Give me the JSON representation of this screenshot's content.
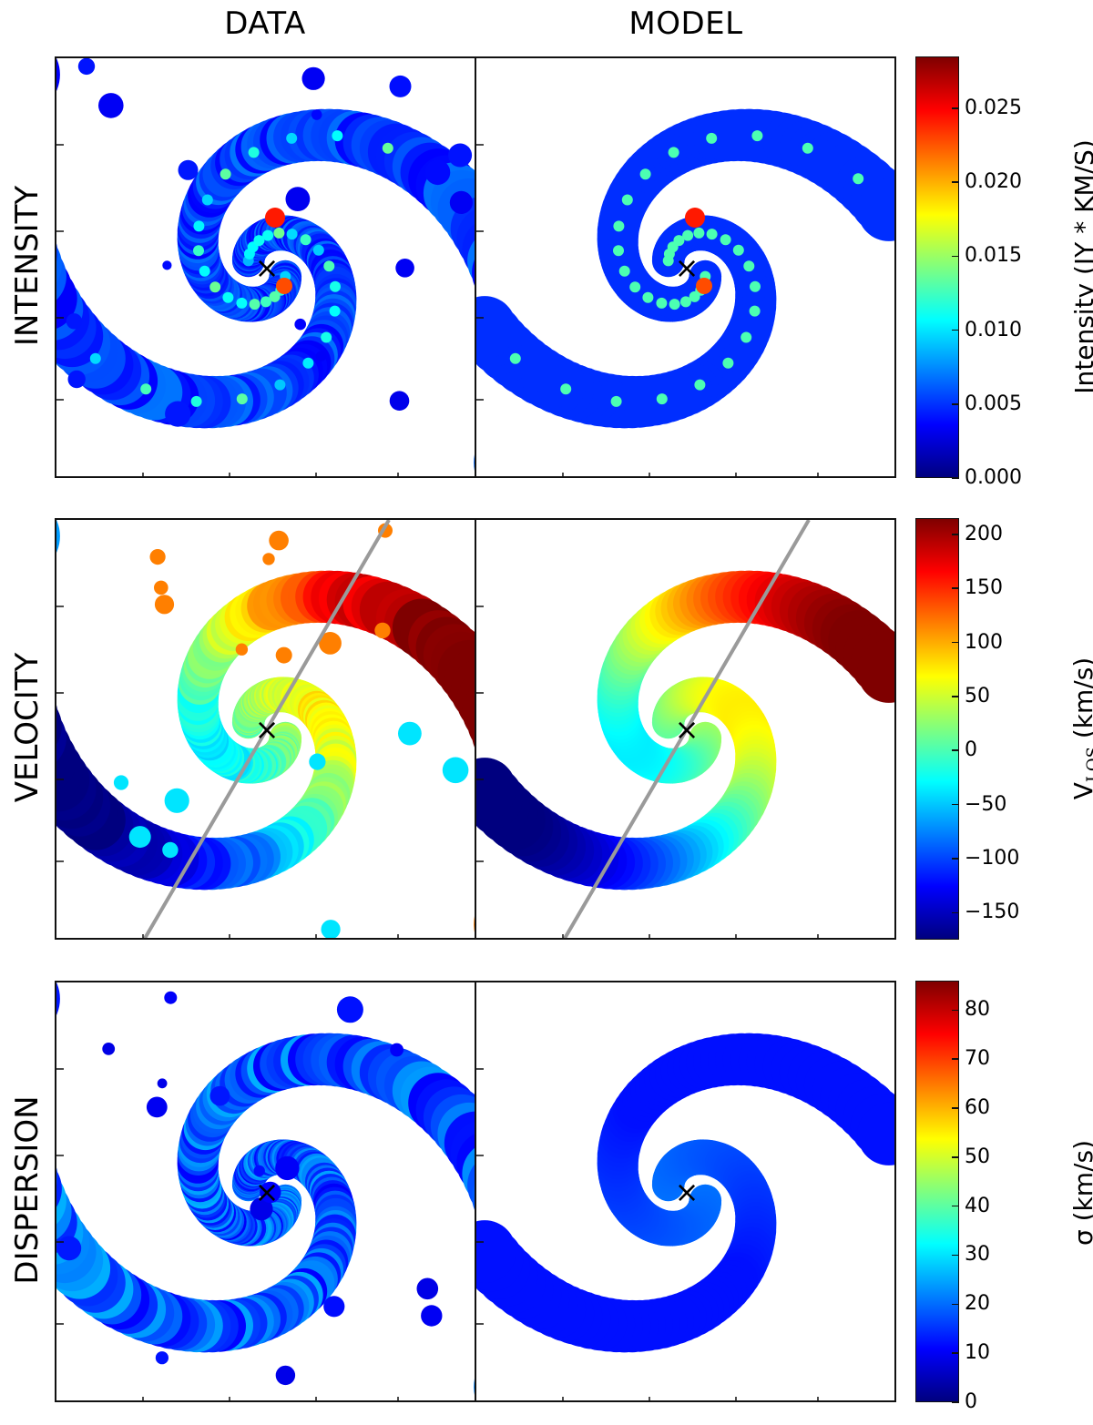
{
  "column_titles": [
    "DATA",
    "MODEL"
  ],
  "row_titles": [
    "INTENSITY",
    "VELOCITY",
    "DISPERSION"
  ],
  "colors": {
    "colormap": [
      "#00007f",
      "#0000ff",
      "#007fff",
      "#00ffff",
      "#7fff7f",
      "#ffff00",
      "#ff7f00",
      "#ff0000",
      "#7f0000"
    ],
    "major_axis_line": "#9a9a9a",
    "center_marker": "#000000"
  },
  "chart_data": [
    {
      "type": "heatmap",
      "row": "INTENSITY",
      "colorbar": {
        "label": "Intensity (JY * KM/S)",
        "range": [
          0.0,
          0.0285
        ],
        "ticks": [
          "0.000",
          "0.005",
          "0.010",
          "0.015",
          "0.020",
          "0.025"
        ],
        "tick_values": [
          0.0,
          0.005,
          0.01,
          0.015,
          0.02,
          0.025
        ]
      },
      "center_marker": "×"
    },
    {
      "type": "heatmap",
      "row": "VELOCITY",
      "colorbar": {
        "label": "V_LOS (km/s)",
        "label_main": "V",
        "label_sub": "LOS",
        "label_unit": "(km/s)",
        "range": [
          -175,
          215
        ],
        "ticks": [
          "200",
          "150",
          "100",
          "50",
          "0",
          "−50",
          "−100",
          "−150"
        ],
        "tick_values": [
          200,
          150,
          100,
          50,
          0,
          -50,
          -100,
          -150
        ]
      },
      "center_marker": "×",
      "major_axis_line": true
    },
    {
      "type": "heatmap",
      "row": "DISPERSION",
      "colorbar": {
        "label": "σ (km/s)",
        "range": [
          0,
          86
        ],
        "ticks": [
          "80",
          "70",
          "60",
          "50",
          "40",
          "30",
          "20",
          "10",
          "0"
        ],
        "tick_values": [
          80,
          70,
          60,
          50,
          40,
          30,
          20,
          10,
          0
        ]
      },
      "center_marker": "×"
    }
  ]
}
